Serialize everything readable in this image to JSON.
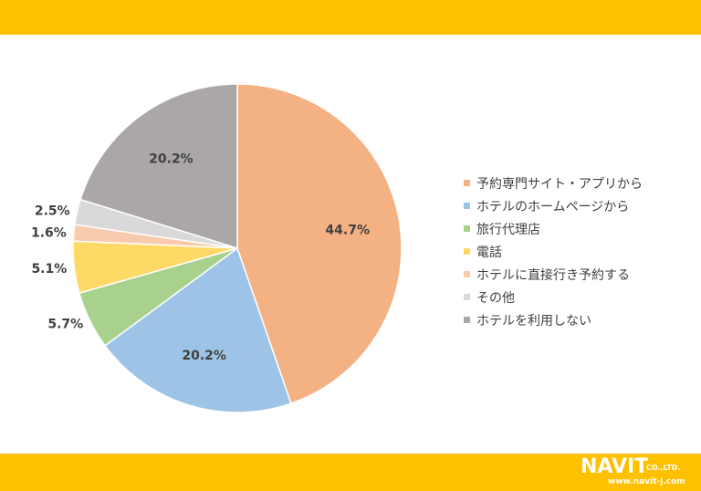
{
  "colors": {
    "band": "#FFC000",
    "text": "#404040"
  },
  "chart_data": {
    "type": "pie",
    "categories": [
      "予約専門サイト・アプリから",
      "ホテルのホームページから",
      "旅行代理店",
      "電話",
      "ホテルに直接行き予約する",
      "その他",
      "ホテルを利用しない"
    ],
    "values": [
      44.7,
      20.2,
      5.7,
      5.1,
      1.6,
      2.5,
      20.2
    ],
    "labels": [
      "44.7%",
      "20.2%",
      "5.7%",
      "5.1%",
      "1.6%",
      "2.5%",
      "20.2%"
    ],
    "colors": [
      "#F4B183",
      "#9DC3E6",
      "#A9D18E",
      "#FFD966",
      "#F8CBAD",
      "#D9D9D9",
      "#ABA7A7"
    ],
    "legend_position": "right",
    "start_angle_deg": 0,
    "direction": "clockwise"
  },
  "logo": {
    "name": "NAVIT",
    "suffix": "CO.,LTD.",
    "url": "www.navit-j.com"
  }
}
